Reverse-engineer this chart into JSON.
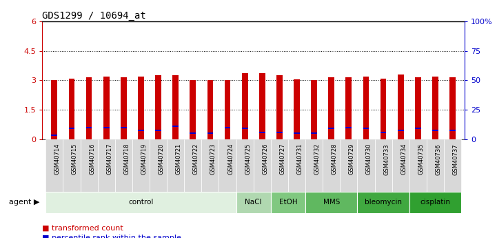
{
  "title": "GDS1299 / 10694_at",
  "samples": [
    "GSM40714",
    "GSM40715",
    "GSM40716",
    "GSM40717",
    "GSM40718",
    "GSM40719",
    "GSM40720",
    "GSM40721",
    "GSM40722",
    "GSM40723",
    "GSM40724",
    "GSM40725",
    "GSM40726",
    "GSM40727",
    "GSM40731",
    "GSM40732",
    "GSM40728",
    "GSM40729",
    "GSM40730",
    "GSM40733",
    "GSM40734",
    "GSM40735",
    "GSM40736",
    "GSM40737"
  ],
  "red_values": [
    3.0,
    3.1,
    3.15,
    3.2,
    3.15,
    3.2,
    3.25,
    3.25,
    3.0,
    3.0,
    3.0,
    3.35,
    3.35,
    3.25,
    3.05,
    3.0,
    3.15,
    3.15,
    3.2,
    3.1,
    3.3,
    3.15,
    3.2,
    3.15
  ],
  "blue_values": [
    0.2,
    0.55,
    0.6,
    0.6,
    0.6,
    0.45,
    0.45,
    0.65,
    0.3,
    0.3,
    0.6,
    0.55,
    0.35,
    0.35,
    0.3,
    0.3,
    0.55,
    0.6,
    0.55,
    0.35,
    0.45,
    0.55,
    0.45,
    0.45
  ],
  "agents": [
    {
      "label": "control",
      "start": 0,
      "end": 11,
      "color": "#e0f0e0"
    },
    {
      "label": "NaCl",
      "start": 11,
      "end": 13,
      "color": "#b0d8b0"
    },
    {
      "label": "EtOH",
      "start": 13,
      "end": 15,
      "color": "#80c880"
    },
    {
      "label": "MMS",
      "start": 15,
      "end": 18,
      "color": "#60b860"
    },
    {
      "label": "bleomycin",
      "start": 18,
      "end": 21,
      "color": "#40a840"
    },
    {
      "label": "cisplatin",
      "start": 21,
      "end": 24,
      "color": "#30a030"
    }
  ],
  "ylim_left": [
    0,
    6
  ],
  "ylim_right": [
    0,
    100
  ],
  "yticks_left": [
    0,
    1.5,
    3.0,
    4.5,
    6.0
  ],
  "yticks_right": [
    0,
    25,
    50,
    75,
    100
  ],
  "ytick_labels_left": [
    "0",
    "1.5",
    "3",
    "4.5",
    "6"
  ],
  "ytick_labels_right": [
    "0",
    "25",
    "50",
    "75",
    "100%"
  ],
  "hlines": [
    1.5,
    3.0,
    4.5
  ],
  "bar_width": 0.35,
  "red_color": "#cc0000",
  "blue_color": "#0000cc",
  "bg_color": "#ffffff",
  "title_fontsize": 10,
  "tick_bg_color": "#d8d8d8"
}
